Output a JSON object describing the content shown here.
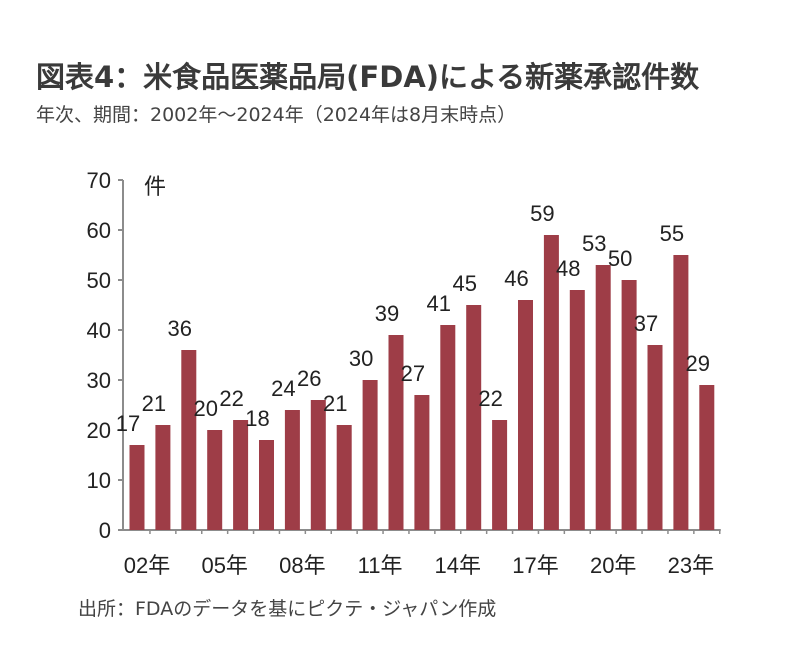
{
  "title": "図表4：米食品医薬品局(FDA)による新薬承認件数",
  "subtitle": "年次、期間：2002年～2024年（2024年は8月末時点）",
  "source": "出所：FDAのデータを基にピクテ・ジャパン作成",
  "colors": {
    "bar": "#9e3d47",
    "axis": "#8c8c8c"
  },
  "chart_data": {
    "type": "bar",
    "title": "図表4：米食品医薬品局(FDA)による新薬承認件数",
    "ylabel": "件",
    "xlabel": "",
    "ylim": [
      0,
      70
    ],
    "yticks": [
      "0",
      "10",
      "20",
      "30",
      "40",
      "50",
      "60",
      "70"
    ],
    "categories": [
      "2002",
      "2003",
      "2004",
      "2005",
      "2006",
      "2007",
      "2008",
      "2009",
      "2010",
      "2011",
      "2012",
      "2013",
      "2014",
      "2015",
      "2016",
      "2017",
      "2018",
      "2019",
      "2020",
      "2021",
      "2022",
      "2023",
      "2024"
    ],
    "xtick_labels": [
      "02年",
      "",
      "",
      "05年",
      "",
      "",
      "08年",
      "",
      "",
      "11年",
      "",
      "",
      "14年",
      "",
      "",
      "17年",
      "",
      "",
      "20年",
      "",
      "",
      "23年",
      ""
    ],
    "values": [
      17,
      21,
      36,
      20,
      22,
      18,
      24,
      26,
      21,
      30,
      39,
      27,
      41,
      45,
      22,
      46,
      59,
      48,
      53,
      50,
      37,
      55,
      29
    ],
    "data_labels": true,
    "grid": false,
    "legend": "none"
  }
}
